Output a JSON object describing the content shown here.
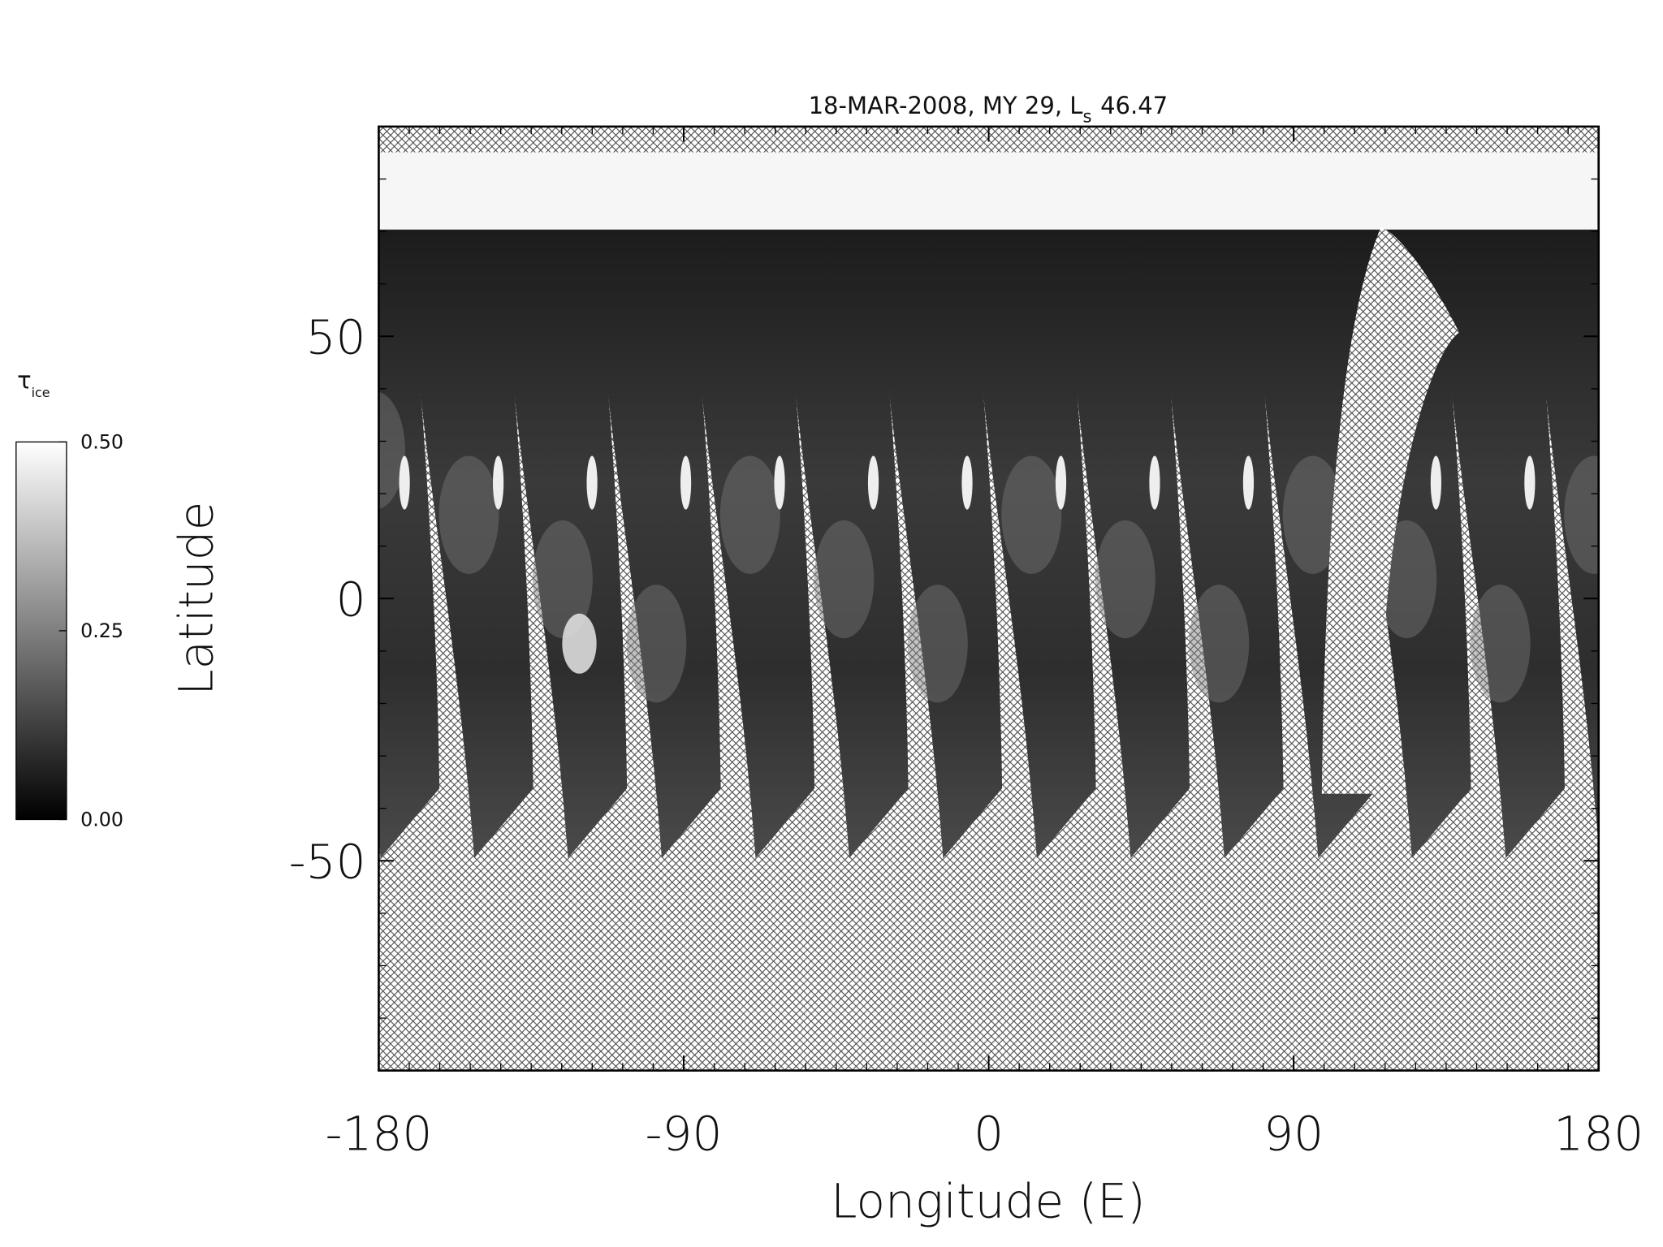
{
  "chart_data": {
    "type": "map",
    "title": "18-MAR-2008, MY 29,  L",
    "title_subscript": "s",
    "title_suffix": "46.47",
    "x_label": "Longitude (E)",
    "y_label": "Latitude",
    "xlim": [
      -180,
      180
    ],
    "xticks": [
      -180,
      -90,
      0,
      90,
      180
    ],
    "ylim": [
      -90,
      90
    ],
    "yticks": [
      -50,
      0,
      50
    ],
    "colorbar": {
      "label": "τ",
      "label_subscript": "ice",
      "lim": [
        0,
        0.5
      ],
      "ticks": [
        {
          "value": 0,
          "label": "0.00"
        },
        {
          "value": 0.25,
          "label": "0.25"
        },
        {
          "value": 0.5,
          "label": "0.50"
        }
      ]
    }
  }
}
